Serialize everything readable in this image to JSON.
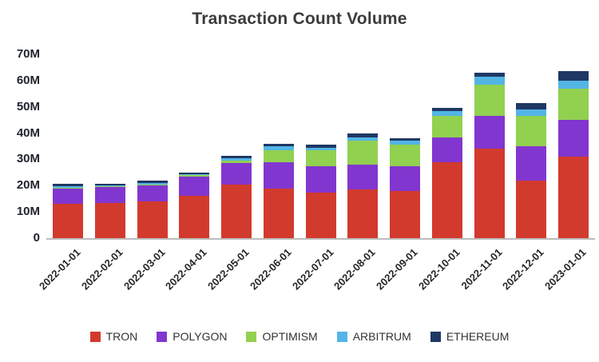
{
  "chart_data": {
    "type": "bar",
    "stacked": true,
    "title": "Transaction Count Volume",
    "categories": [
      "2022-01-01",
      "2022-02-01",
      "2022-03-01",
      "2022-04-01",
      "2022-05-01",
      "2022-06-01",
      "2022-07-01",
      "2022-08-01",
      "2022-09-01",
      "2022-10-01",
      "2022-11-01",
      "2022-12-01",
      "2023-01-01"
    ],
    "series": [
      {
        "name": "TRON",
        "color": "#d23a2e",
        "values": [
          13,
          13.5,
          14,
          16,
          20.5,
          19,
          17.5,
          18.5,
          18,
          29,
          34,
          22,
          31
        ]
      },
      {
        "name": "POLYGON",
        "color": "#8236d0",
        "values": [
          6,
          6,
          6,
          7.5,
          8,
          10,
          10,
          9.5,
          9.5,
          9.5,
          12.5,
          13,
          14
        ]
      },
      {
        "name": "OPTIMISM",
        "color": "#92d050",
        "values": [
          0.3,
          0.4,
          0.4,
          0.4,
          1,
          4.5,
          6,
          9,
          8,
          8,
          12,
          11.5,
          12
        ]
      },
      {
        "name": "ARBITRUM",
        "color": "#53b5e5",
        "values": [
          0.4,
          0.3,
          0.5,
          0.5,
          1,
          1.5,
          1,
          1.5,
          1.5,
          2,
          3,
          2.5,
          3
        ]
      },
      {
        "name": "ETHEREUM",
        "color": "#1f3864",
        "values": [
          0.9,
          0.5,
          0.9,
          0.7,
          1,
          1,
          1,
          1.5,
          1,
          1,
          1.5,
          2.5,
          3.5
        ]
      }
    ],
    "values_unit": "millions",
    "xlabel": "",
    "ylabel": "",
    "ylim": [
      0,
      70
    ],
    "y_ticks": [
      "0",
      "10M",
      "20M",
      "30M",
      "40M",
      "50M",
      "60M",
      "70M"
    ],
    "legend_position": "bottom",
    "grid": false
  }
}
